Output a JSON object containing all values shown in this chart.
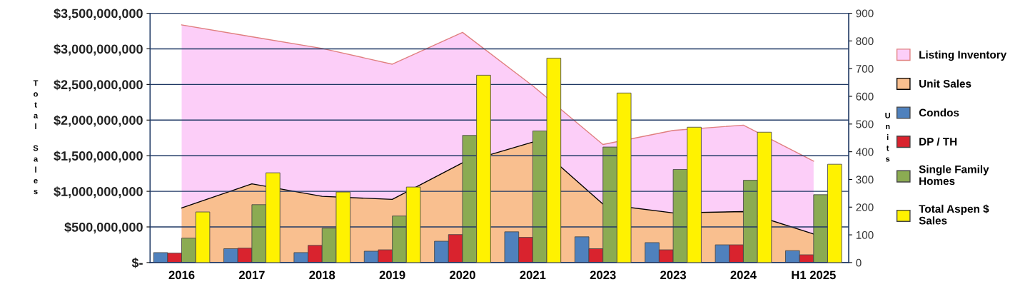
{
  "chart_data": {
    "type": "bar",
    "ylabel": "Total Sales",
    "y2label": "Units",
    "categories": [
      "2016",
      "2017",
      "2018",
      "2019",
      "2020",
      "2021",
      "2023",
      "2023",
      "2024",
      "H1 2025"
    ],
    "series": [
      {
        "name": "Listing Inventory",
        "type": "area",
        "axis": "y2",
        "color": "#fccef8",
        "values": [
          858,
          815,
          773,
          716,
          831,
          638,
          426,
          477,
          496,
          366
        ]
      },
      {
        "name": "Unit Sales",
        "type": "area",
        "axis": "y2",
        "color": "#f9bf8f",
        "values": [
          197,
          284,
          239,
          228,
          360,
          435,
          211,
          179,
          184,
          103
        ]
      },
      {
        "name": "Condos",
        "axis": "y2",
        "color": "#4f81bd",
        "values": [
          36,
          50,
          36,
          41,
          77,
          111,
          93,
          72,
          64,
          43
        ]
      },
      {
        "name": "DP / TH",
        "axis": "y2",
        "color": "#d9232e",
        "values": [
          34,
          52,
          62,
          46,
          101,
          91,
          50,
          46,
          64,
          28
        ]
      },
      {
        "name": "Single Family Homes",
        "axis": "y2",
        "color": "#8bab52",
        "values": [
          88,
          209,
          124,
          168,
          459,
          475,
          417,
          336,
          297,
          245
        ]
      },
      {
        "name": "Total Aspen $ Sales",
        "color": "#fff200",
        "values": [
          710000000,
          1260000000,
          990000000,
          1060000000,
          2630000000,
          2870000000,
          2380000000,
          1900000000,
          1830000000,
          1380000000
        ]
      }
    ],
    "ylim": [
      0,
      3500000000
    ],
    "yticks": [
      {
        "value": 0,
        "label": "$-"
      },
      {
        "value": 500000000,
        "label": "$500,000,000"
      },
      {
        "value": 1000000000,
        "label": "$1,000,000,000"
      },
      {
        "value": 1500000000,
        "label": "$1,500,000,000"
      },
      {
        "value": 2000000000,
        "label": "$2,000,000,000"
      },
      {
        "value": 2500000000,
        "label": "$2,500,000,000"
      },
      {
        "value": 3000000000,
        "label": "$3,000,000,000"
      },
      {
        "value": 3500000000,
        "label": "$3,500,000,000"
      }
    ],
    "y2lim": [
      0,
      900
    ],
    "y2ticks": [
      0,
      100,
      200,
      300,
      400,
      500,
      600,
      700,
      800,
      900
    ],
    "grid": "y",
    "legend": "right"
  }
}
